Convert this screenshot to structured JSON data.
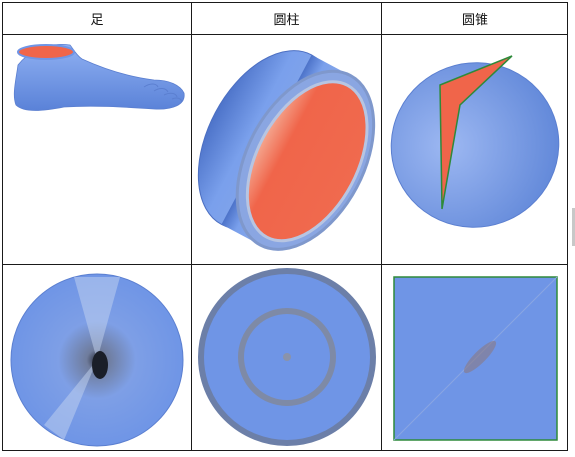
{
  "table": {
    "headers": [
      "足",
      "圆柱",
      "圆锥"
    ]
  },
  "rows": [
    {
      "cells": [
        {
          "icon": "foot-mesh-render-icon"
        },
        {
          "icon": "cylinder-ring-mesh-render-icon"
        },
        {
          "icon": "cone-wedge-mesh-render-icon"
        }
      ]
    },
    {
      "cells": [
        {
          "icon": "disk-parameterization-icon"
        },
        {
          "icon": "annulus-parameterization-icon"
        },
        {
          "icon": "square-parameterization-icon"
        }
      ]
    }
  ],
  "colors": {
    "mesh_blue": "#6f95e6",
    "inner_red": "#f0654a",
    "outline_green": "#2e8a3a",
    "border": "#1a1a1a"
  }
}
